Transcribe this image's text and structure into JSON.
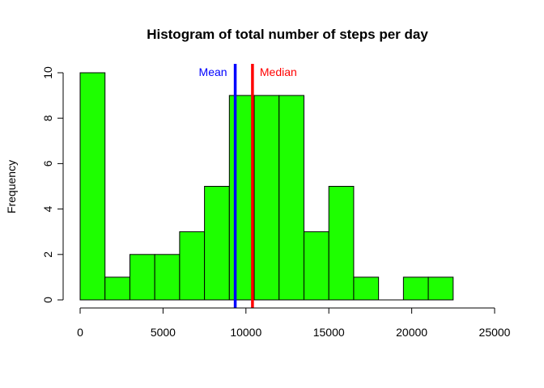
{
  "chart_data": {
    "type": "bar",
    "title": "Histogram of total number of steps per day",
    "xlabel": "",
    "ylabel": "Frequency",
    "bin_width": 1500,
    "bins": [
      {
        "start": 0,
        "end": 1500,
        "count": 10
      },
      {
        "start": 1500,
        "end": 3000,
        "count": 1
      },
      {
        "start": 3000,
        "end": 4500,
        "count": 2
      },
      {
        "start": 4500,
        "end": 6000,
        "count": 2
      },
      {
        "start": 6000,
        "end": 7500,
        "count": 3
      },
      {
        "start": 7500,
        "end": 9000,
        "count": 5
      },
      {
        "start": 9000,
        "end": 10500,
        "count": 9
      },
      {
        "start": 10500,
        "end": 12000,
        "count": 9
      },
      {
        "start": 12000,
        "end": 13500,
        "count": 9
      },
      {
        "start": 13500,
        "end": 15000,
        "count": 3
      },
      {
        "start": 15000,
        "end": 16500,
        "count": 5
      },
      {
        "start": 16500,
        "end": 18000,
        "count": 1
      },
      {
        "start": 18000,
        "end": 19500,
        "count": 0
      },
      {
        "start": 19500,
        "end": 21000,
        "count": 1
      },
      {
        "start": 21000,
        "end": 22500,
        "count": 1
      }
    ],
    "xlim": [
      0,
      25000
    ],
    "ylim": [
      0,
      10
    ],
    "xticks": [
      "0",
      "5000",
      "10000",
      "15000",
      "20000",
      "25000"
    ],
    "yticks": [
      "0",
      "2",
      "4",
      "6",
      "8",
      "10"
    ],
    "bar_color": "#1EFF00",
    "bar_border_color": "#000000",
    "reference_lines": [
      {
        "label": "Mean",
        "x": 9354,
        "color": "#0000FF"
      },
      {
        "label": "Median",
        "x": 10395,
        "color": "#FF0000"
      }
    ],
    "grid": false,
    "legend": "none"
  }
}
